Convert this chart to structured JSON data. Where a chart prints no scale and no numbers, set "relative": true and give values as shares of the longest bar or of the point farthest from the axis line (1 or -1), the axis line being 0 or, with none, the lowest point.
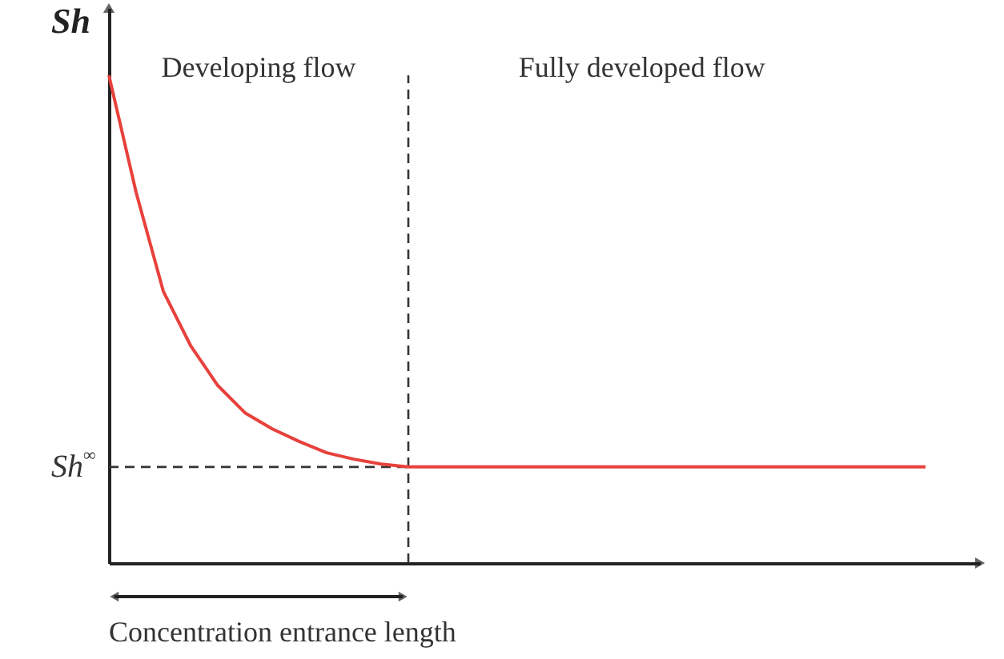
{
  "chart_data": {
    "type": "line",
    "relative": true,
    "ylabel": "Sh",
    "categories": [
      null,
      null,
      null,
      null,
      null,
      null,
      null,
      null,
      null,
      null,
      null,
      null,
      null,
      null,
      null,
      null,
      null,
      null,
      null,
      null,
      null,
      null,
      null,
      null,
      null,
      null,
      null,
      null,
      null,
      null,
      null
    ],
    "series": [
      {
        "color": "#e8413c",
        "values": [
          1,
          0.76,
          0.557,
          0.446,
          0.364,
          0.308,
          0.275,
          0.249,
          0.226,
          0.213,
          0.203,
          0.197,
          0.197,
          0.197,
          0.197,
          0.197,
          0.197,
          0.197,
          0.197,
          0.197,
          0.197,
          0.197,
          0.197,
          0.197,
          0.197,
          0.197,
          0.197,
          0.197,
          0.197,
          0.197,
          0.197
        ]
      }
    ],
    "ref_lines": [
      {
        "axis": "x",
        "line_style": "dashed"
      },
      {
        "axis": "y",
        "value": 0.197,
        "label": "Sh$^{∞}$",
        "line_style": "dashed"
      }
    ],
    "annotations": [
      "Developing flow",
      "Fully developed flow",
      "Concentration entrance length"
    ],
    "marker": "none",
    "line_style": "solid"
  }
}
